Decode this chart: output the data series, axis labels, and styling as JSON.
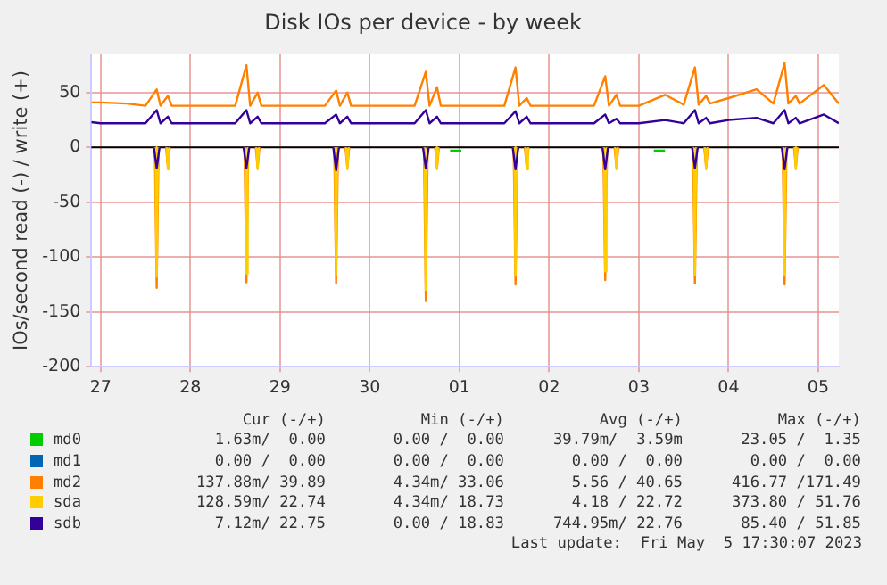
{
  "chart_data": {
    "type": "line",
    "title": "Disk IOs per device - by week",
    "ylabel": "IOs/second read (-) / write (+)",
    "x": [
      "2023-04-27T09:30",
      "2023-04-27T12:00",
      "2023-04-27T19:00",
      "2023-04-28T00:00",
      "2023-04-28T03:00",
      "2023-04-28T04:00",
      "2023-04-28T06:00",
      "2023-04-28T07:00",
      "2023-04-28T12:00",
      "2023-04-28T19:00",
      "2023-04-29T00:00",
      "2023-04-29T03:00",
      "2023-04-29T04:00",
      "2023-04-29T06:00",
      "2023-04-29T07:00",
      "2023-04-29T12:00",
      "2023-04-29T19:00",
      "2023-04-30T00:00",
      "2023-04-30T03:00",
      "2023-04-30T04:00",
      "2023-04-30T06:00",
      "2023-04-30T07:00",
      "2023-04-30T12:00",
      "2023-04-30T19:00",
      "2023-05-01T00:00",
      "2023-05-01T03:00",
      "2023-05-01T04:00",
      "2023-05-01T06:00",
      "2023-05-01T07:00",
      "2023-05-01T12:00",
      "2023-05-01T19:00",
      "2023-05-02T00:00",
      "2023-05-02T03:00",
      "2023-05-02T04:00",
      "2023-05-02T06:00",
      "2023-05-02T07:00",
      "2023-05-02T12:00",
      "2023-05-02T19:00",
      "2023-05-03T00:00",
      "2023-05-03T03:00",
      "2023-05-03T04:00",
      "2023-05-03T06:00",
      "2023-05-03T07:00",
      "2023-05-03T12:00",
      "2023-05-03T19:00",
      "2023-05-04T00:00",
      "2023-05-04T03:00",
      "2023-05-04T04:00",
      "2023-05-04T06:00",
      "2023-05-04T07:00",
      "2023-05-04T12:00",
      "2023-05-04T19:30",
      "2023-05-05T00:00",
      "2023-05-05T03:00",
      "2023-05-05T04:00",
      "2023-05-05T06:00",
      "2023-05-05T07:00",
      "2023-05-05T13:30",
      "2023-05-05T17:30"
    ],
    "series": [
      {
        "name": "md0",
        "color": "#00cc00",
        "x": [
          "2023-05-01T09:30",
          "2023-05-01T12:30",
          "2023-05-01T14:00",
          "2023-05-03T16:00",
          "2023-05-03T19:00"
        ],
        "values": [
          -3,
          -3,
          null,
          -3,
          -3
        ]
      },
      {
        "name": "md1",
        "color": "#0066b3",
        "values": [
          null,
          null,
          null,
          null,
          null,
          null,
          null,
          null,
          null,
          null,
          null,
          null,
          null,
          null,
          null,
          null,
          null,
          null,
          null,
          null,
          null,
          null,
          null,
          null,
          null,
          null,
          null,
          null,
          null,
          null,
          null,
          null,
          null,
          null,
          null,
          null,
          null,
          null,
          null,
          null,
          null,
          null,
          null,
          null,
          null,
          null,
          null,
          null,
          null,
          null,
          null,
          null,
          null,
          null,
          null,
          null,
          null,
          null,
          null
        ]
      },
      {
        "name": "md2",
        "color": "#ff8000",
        "values": [
          41,
          41,
          40,
          38,
          53,
          38,
          47,
          38,
          38,
          38,
          38,
          75,
          38,
          50,
          38,
          38,
          38,
          38,
          52,
          38,
          50,
          38,
          38,
          38,
          38,
          69,
          38,
          55,
          38,
          38,
          38,
          38,
          73,
          38,
          45,
          38,
          38,
          38,
          38,
          65,
          38,
          48,
          38,
          38,
          48,
          39,
          73,
          39,
          47,
          40,
          45,
          53,
          40,
          77,
          40,
          47,
          40,
          57,
          40
        ]
      },
      {
        "color": "#ff8000",
        "x": [
          "2023-04-28T02:30",
          "2023-04-28T03:00",
          "2023-04-28T03:30",
          "2023-04-28T04:30",
          "2023-04-28T05:30",
          "2023-04-28T06:00",
          "2023-04-28T06:30",
          "2023-04-28T12:00",
          "2023-04-29T02:30",
          "2023-04-29T03:00",
          "2023-04-29T03:30",
          "2023-04-29T04:30",
          "2023-04-29T05:30",
          "2023-04-29T06:00",
          "2023-04-29T06:30",
          "2023-04-29T12:00",
          "2023-04-30T02:30",
          "2023-04-30T03:00",
          "2023-04-30T03:30",
          "2023-04-30T04:30",
          "2023-04-30T05:30",
          "2023-04-30T06:00",
          "2023-04-30T06:30",
          "2023-04-30T12:00",
          "2023-05-01T02:30",
          "2023-05-01T03:00",
          "2023-05-01T03:30",
          "2023-05-01T04:30",
          "2023-05-01T05:30",
          "2023-05-01T06:00",
          "2023-05-01T06:30",
          "2023-05-01T12:00",
          "2023-05-02T02:30",
          "2023-05-02T03:00",
          "2023-05-02T03:30",
          "2023-05-02T04:30",
          "2023-05-02T05:30",
          "2023-05-02T06:00",
          "2023-05-02T06:30",
          "2023-05-02T12:00",
          "2023-05-03T02:30",
          "2023-05-03T03:00",
          "2023-05-03T03:30",
          "2023-05-03T04:30",
          "2023-05-03T05:30",
          "2023-05-03T06:00",
          "2023-05-03T06:30",
          "2023-05-03T12:00",
          "2023-05-04T02:30",
          "2023-05-04T03:00",
          "2023-05-04T03:30",
          "2023-05-04T04:30",
          "2023-05-04T05:30",
          "2023-05-04T06:00",
          "2023-05-04T06:30",
          "2023-05-04T12:00",
          "2023-05-05T02:30",
          "2023-05-05T03:00",
          "2023-05-05T03:30",
          "2023-05-05T04:30",
          "2023-05-05T05:30",
          "2023-05-05T06:00",
          "2023-05-05T06:30"
        ],
        "values": [
          0,
          -128,
          0,
          null,
          0,
          -18,
          0,
          null,
          0,
          -123,
          0,
          null,
          0,
          -18,
          0,
          null,
          0,
          -124,
          0,
          null,
          0,
          -18,
          0,
          null,
          0,
          -140,
          0,
          null,
          0,
          -18,
          0,
          null,
          0,
          -125,
          0,
          null,
          0,
          -18,
          0,
          null,
          0,
          -121,
          0,
          null,
          0,
          -18,
          0,
          null,
          0,
          -124,
          0,
          null,
          0,
          -18,
          0,
          null,
          0,
          -125,
          0,
          null,
          0,
          -18,
          0
        ]
      },
      {
        "name": "sda",
        "color": "#ffcc00",
        "x": [
          "2023-04-28T02:40",
          "2023-04-28T03:00",
          "2023-04-28T03:20",
          "2023-04-28T04:30",
          "2023-04-28T05:40",
          "2023-04-28T06:00",
          "2023-04-28T06:20",
          "2023-04-28T12:00",
          "2023-04-29T02:40",
          "2023-04-29T03:00",
          "2023-04-29T03:20",
          "2023-04-29T04:30",
          "2023-04-29T05:40",
          "2023-04-29T06:00",
          "2023-04-29T06:20",
          "2023-04-29T12:00",
          "2023-04-30T02:40",
          "2023-04-30T03:00",
          "2023-04-30T03:20",
          "2023-04-30T04:30",
          "2023-04-30T05:40",
          "2023-04-30T06:00",
          "2023-04-30T06:20",
          "2023-04-30T12:00",
          "2023-05-01T02:40",
          "2023-05-01T03:00",
          "2023-05-01T03:20",
          "2023-05-01T04:30",
          "2023-05-01T05:40",
          "2023-05-01T06:00",
          "2023-05-01T06:20",
          "2023-05-01T12:00",
          "2023-05-02T02:40",
          "2023-05-02T03:00",
          "2023-05-02T03:20",
          "2023-05-02T04:30",
          "2023-05-02T05:40",
          "2023-05-02T06:00",
          "2023-05-02T06:20",
          "2023-05-02T12:00",
          "2023-05-03T02:40",
          "2023-05-03T03:00",
          "2023-05-03T03:20",
          "2023-05-03T04:30",
          "2023-05-03T05:40",
          "2023-05-03T06:00",
          "2023-05-03T06:20",
          "2023-05-03T12:00",
          "2023-05-04T02:40",
          "2023-05-04T03:00",
          "2023-05-04T03:20",
          "2023-05-04T04:30",
          "2023-05-04T05:40",
          "2023-05-04T06:00",
          "2023-05-04T06:20",
          "2023-05-04T12:00",
          "2023-05-05T02:40",
          "2023-05-05T03:00",
          "2023-05-05T03:20",
          "2023-05-05T04:30",
          "2023-05-05T05:40",
          "2023-05-05T06:00",
          "2023-05-05T06:20"
        ],
        "values": [
          0,
          -118,
          0,
          null,
          0,
          -20,
          0,
          null,
          0,
          -115,
          0,
          null,
          0,
          -20,
          0,
          null,
          0,
          -116,
          0,
          null,
          0,
          -20,
          0,
          null,
          0,
          -130,
          0,
          null,
          0,
          -20,
          0,
          null,
          0,
          -117,
          0,
          null,
          0,
          -20,
          0,
          null,
          0,
          -113,
          0,
          null,
          0,
          -20,
          0,
          null,
          0,
          -116,
          0,
          null,
          0,
          -20,
          0,
          null,
          0,
          -117,
          0,
          null,
          0,
          -20,
          0
        ]
      },
      {
        "name": "sdb",
        "color": "#330099",
        "values": [
          23,
          22,
          22,
          22,
          34,
          22,
          28,
          22,
          22,
          22,
          22,
          34,
          22,
          28,
          22,
          22,
          22,
          22,
          30,
          22,
          28,
          22,
          22,
          22,
          22,
          34,
          22,
          28,
          22,
          22,
          22,
          22,
          33,
          22,
          28,
          22,
          22,
          22,
          22,
          30,
          22,
          26,
          22,
          22,
          25,
          22,
          34,
          22,
          27,
          22,
          25,
          27,
          22,
          34,
          22,
          27,
          22,
          30,
          22
        ]
      },
      {
        "color": "#330099",
        "x": [
          "2023-04-28T02:15",
          "2023-04-28T03:00",
          "2023-04-28T03:45",
          "2023-04-28T12:00",
          "2023-04-29T02:15",
          "2023-04-29T03:00",
          "2023-04-29T03:45",
          "2023-04-29T12:00",
          "2023-04-30T02:15",
          "2023-04-30T03:00",
          "2023-04-30T03:45",
          "2023-04-30T12:00",
          "2023-05-01T02:15",
          "2023-05-01T03:00",
          "2023-05-01T03:45",
          "2023-05-01T12:00",
          "2023-05-02T02:15",
          "2023-05-02T03:00",
          "2023-05-02T03:45",
          "2023-05-02T12:00",
          "2023-05-03T02:15",
          "2023-05-03T03:00",
          "2023-05-03T03:45",
          "2023-05-03T12:00",
          "2023-05-04T02:15",
          "2023-05-04T03:00",
          "2023-05-04T03:45",
          "2023-05-04T12:00",
          "2023-05-05T02:15",
          "2023-05-05T03:00",
          "2023-05-05T03:45"
        ],
        "values": [
          0,
          -19,
          0,
          null,
          0,
          -19,
          0,
          null,
          0,
          -21,
          0,
          null,
          0,
          -19,
          0,
          null,
          0,
          -20,
          0,
          null,
          0,
          -20,
          0,
          null,
          0,
          -19,
          0,
          null,
          0,
          -20,
          0
        ]
      }
    ],
    "xlim": [
      "2023-04-27T09:30",
      "2023-05-05T17:30"
    ],
    "xticks": [
      {
        "value": "2023-04-27T12:00",
        "label": "27"
      },
      {
        "value": "2023-04-28T12:00",
        "label": "28"
      },
      {
        "value": "2023-04-29T12:00",
        "label": "29"
      },
      {
        "value": "2023-04-30T12:00",
        "label": "30"
      },
      {
        "value": "2023-05-01T12:00",
        "label": "01"
      },
      {
        "value": "2023-05-02T12:00",
        "label": "02"
      },
      {
        "value": "2023-05-03T12:00",
        "label": "03"
      },
      {
        "value": "2023-05-04T12:00",
        "label": "04"
      },
      {
        "value": "2023-05-05T12:00",
        "label": "05"
      }
    ],
    "ylim": [
      -200,
      85
    ],
    "yticks": [
      -200,
      -150,
      -100,
      -50,
      0,
      50
    ],
    "ref_lines": [
      {
        "axis": "y",
        "value": 0,
        "color": "#000000"
      }
    ],
    "grid": true,
    "legend": "bottom",
    "marker": "none",
    "line_style": "solid",
    "annotations": [
      "Cur (-/+)",
      "Min (-/+)",
      "Avg (-/+)",
      "Max (-/+)",
      "1.63m/  0.00",
      "0.00 /  0.00",
      "39.79m/  3.59m",
      "23.05 /  1.35",
      "0.00 /  0.00",
      "0.00 /  0.00",
      "0.00 /  0.00",
      "0.00 /  0.00",
      "137.88m/ 39.89",
      "4.34m/ 33.06",
      "5.56 / 40.65",
      "416.77 /171.49",
      "128.59m/ 22.74",
      "4.34m/ 18.73",
      "4.18 / 22.72",
      "373.80 / 51.76",
      "7.12m/ 22.75",
      "0.00 / 18.83",
      "744.95m/ 22.76",
      "85.40 / 51.85",
      "Last update:  Fri May  5 17:30:07 2023"
    ]
  }
}
